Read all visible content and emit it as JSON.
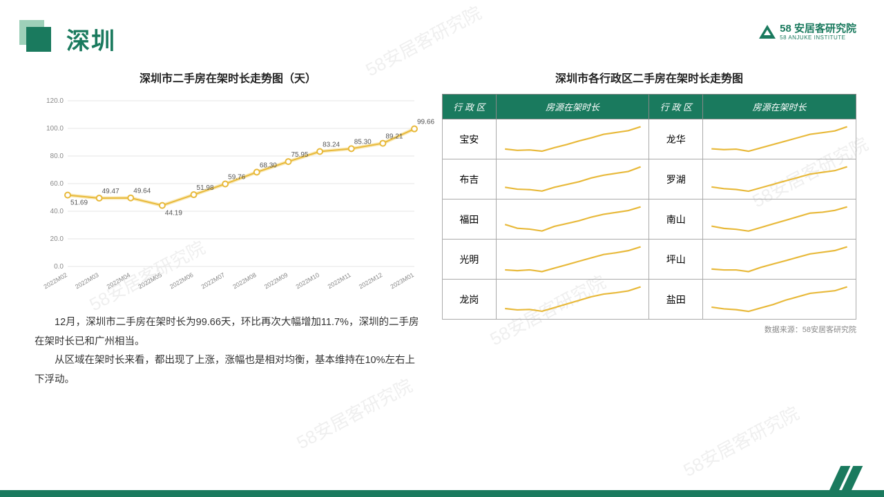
{
  "header": {
    "title": "深圳",
    "logo_main": "58 安居客研究院",
    "logo_sub": "58 ANJUKE INSTITUTE"
  },
  "chart": {
    "title": "深圳市二手房在架时长走势图（天）",
    "type": "line",
    "line_color": "#e8b93a",
    "marker_stroke": "#e8b93a",
    "grid_color": "#e5e5e5",
    "background_color": "#ffffff",
    "ylim": [
      0,
      120
    ],
    "ytick_step": 20,
    "yticks": [
      "0.0",
      "20.0",
      "40.0",
      "60.0",
      "80.0",
      "100.0",
      "120.0"
    ],
    "xlabels": [
      "2022M02",
      "2022M03",
      "2022M04",
      "2022M05",
      "2022M06",
      "2022M07",
      "2022M08",
      "2022M09",
      "2022M10",
      "2022M11",
      "2022M12",
      "2023M01"
    ],
    "values": [
      51.69,
      49.47,
      49.64,
      44.19,
      51.98,
      59.76,
      68.3,
      75.95,
      83.24,
      85.3,
      89.21,
      99.66
    ],
    "label_fontsize": 10,
    "title_fontsize": 16
  },
  "body": {
    "p1": "12月，深圳市二手房在架时长为99.66天，环比再次大幅增加11.7%，深圳的二手房在架时长已和广州相当。",
    "p2": "从区域在架时长来看，都出现了上涨，涨幅也是相对均衡，基本维持在10%左右上下浮动。"
  },
  "table": {
    "title": "深圳市各行政区二手房在架时长走势图",
    "header_bg": "#1a7a5e",
    "header_color": "#ffffff",
    "border_color": "#aaaaaa",
    "col_district": "行 政 区",
    "col_trend": "房源在架时长",
    "spark_color": "#e8b93a",
    "rows": [
      {
        "l": "宝安",
        "r": "龙华"
      },
      {
        "l": "布吉",
        "r": "罗湖"
      },
      {
        "l": "福田",
        "r": "南山"
      },
      {
        "l": "光明",
        "r": "坪山"
      },
      {
        "l": "龙岗",
        "r": "盐田"
      }
    ],
    "sparks": {
      "宝安": [
        45,
        42,
        43,
        40,
        48,
        55,
        63,
        70,
        78,
        82,
        86,
        95
      ],
      "布吉": [
        50,
        46,
        45,
        42,
        50,
        56,
        62,
        70,
        76,
        80,
        84,
        94
      ],
      "福田": [
        58,
        50,
        48,
        44,
        54,
        60,
        66,
        74,
        80,
        84,
        88,
        96
      ],
      "光明": [
        40,
        38,
        40,
        36,
        44,
        52,
        60,
        68,
        76,
        80,
        85,
        94
      ],
      "龙岗": [
        48,
        45,
        46,
        42,
        50,
        58,
        66,
        74,
        80,
        83,
        87,
        96
      ],
      "龙华": [
        46,
        44,
        45,
        40,
        48,
        56,
        64,
        72,
        80,
        84,
        88,
        98
      ],
      "罗湖": [
        52,
        48,
        46,
        42,
        50,
        58,
        66,
        74,
        82,
        86,
        90,
        99
      ],
      "南山": [
        55,
        50,
        48,
        44,
        52,
        60,
        68,
        76,
        84,
        86,
        90,
        98
      ],
      "坪山": [
        42,
        40,
        40,
        36,
        46,
        54,
        62,
        70,
        78,
        82,
        86,
        95
      ],
      "盐田": [
        50,
        46,
        44,
        40,
        48,
        56,
        66,
        74,
        82,
        85,
        88,
        97
      ]
    },
    "source": "数据来源：58安居客研究院"
  },
  "watermark": "58安居客研究院",
  "colors": {
    "brand": "#1a7a5e"
  }
}
